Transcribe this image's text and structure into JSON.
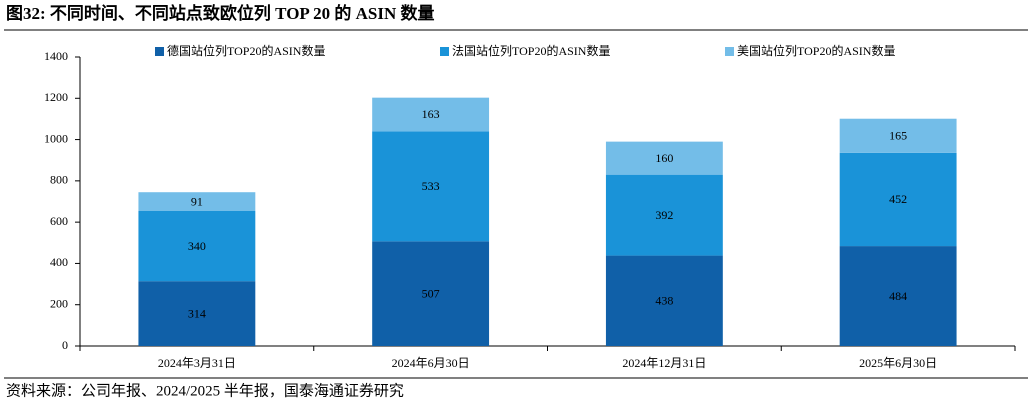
{
  "chart_data": {
    "type": "stacked_bar",
    "title": "图32:  不同时间、不同站点致欧位列 TOP 20 的 ASIN 数量",
    "source": "资料来源：公司年报、2024/2025 半年报，国泰海通证券研究",
    "categories": [
      "2024年3月31日",
      "2024年6月30日",
      "2024年12月31日",
      "2025年6月30日"
    ],
    "series": [
      {
        "name": "德国站位列TOP20的ASIN数量",
        "color": "#1060a8",
        "values": [
          314,
          507,
          438,
          484
        ]
      },
      {
        "name": "法国站位列TOP20的ASIN数量",
        "color": "#1a93d8",
        "values": [
          340,
          533,
          392,
          452
        ]
      },
      {
        "name": "美国站位列TOP20的ASIN数量",
        "color": "#73bde8",
        "values": [
          91,
          163,
          160,
          165
        ]
      }
    ],
    "ylim": [
      0,
      1400
    ],
    "yticks": [
      0,
      200,
      400,
      600,
      800,
      1000,
      1200,
      1400
    ],
    "grid": false
  }
}
